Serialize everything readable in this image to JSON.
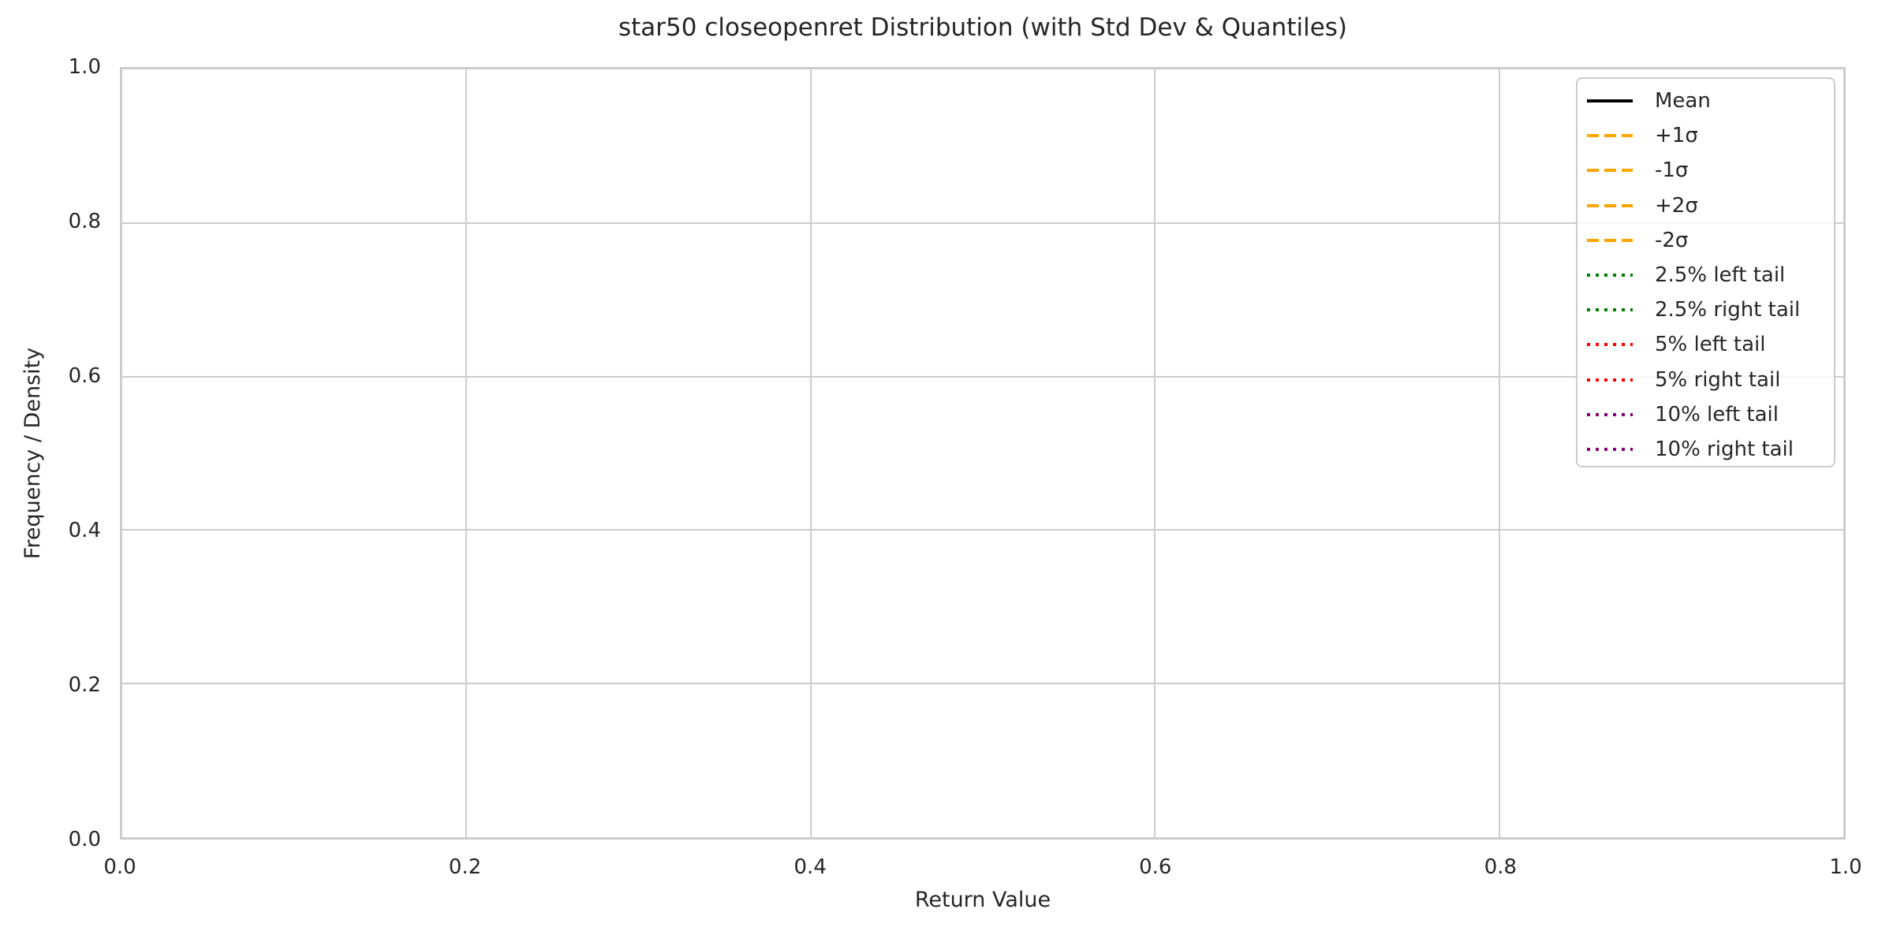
{
  "chart_data": {
    "type": "line",
    "title": "star50 closeopenret Distribution (with Std Dev & Quantiles)",
    "xlabel": "Return Value",
    "ylabel": "Frequency / Density",
    "xlim": [
      0.0,
      1.0
    ],
    "ylim": [
      0.0,
      1.0
    ],
    "x_ticks": [
      0.0,
      0.2,
      0.4,
      0.6,
      0.8,
      1.0
    ],
    "y_ticks": [
      0.0,
      0.2,
      0.4,
      0.6,
      0.8,
      1.0
    ],
    "grid": true,
    "plot_is_empty": true,
    "series": [],
    "legend_position": "upper-right",
    "legend": [
      {
        "label": "Mean",
        "color": "#000000",
        "line_style": "solid"
      },
      {
        "label": "+1σ",
        "color": "#ffa500",
        "line_style": "dashed"
      },
      {
        "label": "-1σ",
        "color": "#ffa500",
        "line_style": "dashed"
      },
      {
        "label": "+2σ",
        "color": "#ffa500",
        "line_style": "dashed"
      },
      {
        "label": "-2σ",
        "color": "#ffa500",
        "line_style": "dashed"
      },
      {
        "label": "2.5% left tail",
        "color": "#008000",
        "line_style": "dotted"
      },
      {
        "label": "2.5% right tail",
        "color": "#008000",
        "line_style": "dotted"
      },
      {
        "label": "5% left tail",
        "color": "#ff0000",
        "line_style": "dotted"
      },
      {
        "label": "5% right tail",
        "color": "#ff0000",
        "line_style": "dotted"
      },
      {
        "label": "10% left tail",
        "color": "#800080",
        "line_style": "dotted"
      },
      {
        "label": "10% right tail",
        "color": "#800080",
        "line_style": "dotted"
      }
    ],
    "colors": {
      "background": "#ffffff",
      "grid": "#cccccc",
      "spine": "#cccccc",
      "text": "#262626",
      "legend_border": "#cccccc"
    }
  }
}
